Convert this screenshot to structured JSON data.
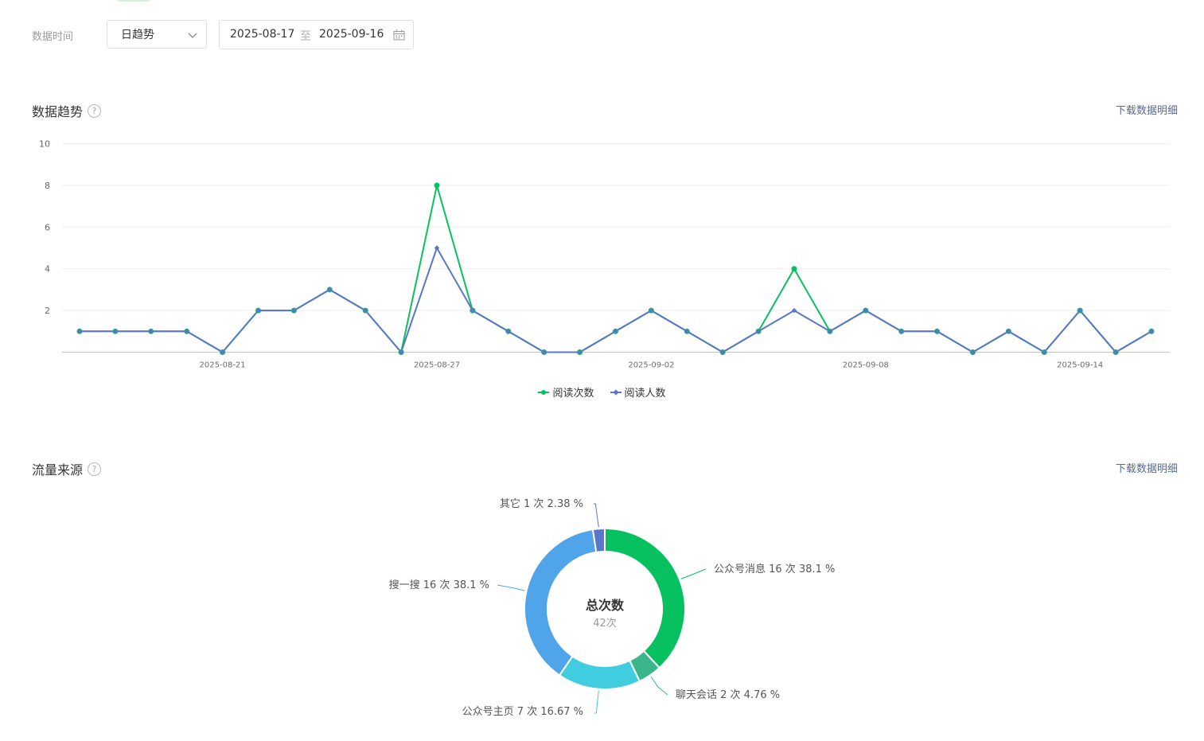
{
  "filters": {
    "label": "数据时间",
    "period_select": "日趋势",
    "date_start": "2025-08-17",
    "date_separator": "至",
    "date_end": "2025-09-16"
  },
  "trend_section": {
    "title": "数据趋势",
    "download_label": "下载数据明细"
  },
  "source_section": {
    "title": "流量来源",
    "download_label": "下载数据明细"
  },
  "colors": {
    "green": "#07c160",
    "blue": "#5b76c9",
    "link": "#576b95"
  },
  "chart_data": [
    {
      "type": "line",
      "x": [
        "2025-08-17",
        "2025-08-18",
        "2025-08-19",
        "2025-08-20",
        "2025-08-21",
        "2025-08-22",
        "2025-08-23",
        "2025-08-24",
        "2025-08-25",
        "2025-08-26",
        "2025-08-27",
        "2025-08-28",
        "2025-08-29",
        "2025-08-30",
        "2025-08-31",
        "2025-09-01",
        "2025-09-02",
        "2025-09-03",
        "2025-09-04",
        "2025-09-05",
        "2025-09-06",
        "2025-09-07",
        "2025-09-08",
        "2025-09-09",
        "2025-09-10",
        "2025-09-11",
        "2025-09-12",
        "2025-09-13",
        "2025-09-14",
        "2025-09-15",
        "2025-09-16"
      ],
      "x_tick_labels": [
        "2025-08-21",
        "2025-08-27",
        "2025-09-02",
        "2025-09-08",
        "2025-09-14"
      ],
      "ylim": [
        0,
        10
      ],
      "y_ticks": [
        2,
        4,
        6,
        8,
        10
      ],
      "grid": true,
      "legend_position": "bottom",
      "series": [
        {
          "name": "阅读次数",
          "color": "#07c160",
          "marker": "circle",
          "values": [
            1,
            1,
            1,
            1,
            0,
            2,
            2,
            3,
            2,
            0,
            8,
            2,
            1,
            0,
            0,
            1,
            2,
            1,
            0,
            1,
            4,
            1,
            2,
            1,
            1,
            0,
            1,
            0,
            2,
            0,
            1
          ]
        },
        {
          "name": "阅读人数",
          "color": "#5b76c9",
          "marker": "diamond",
          "values": [
            1,
            1,
            1,
            1,
            0,
            2,
            2,
            3,
            2,
            0,
            5,
            2,
            1,
            0,
            0,
            1,
            2,
            1,
            0,
            1,
            2,
            1,
            2,
            1,
            1,
            0,
            1,
            0,
            2,
            0,
            1
          ]
        }
      ]
    },
    {
      "type": "pie",
      "center_title": "总次数",
      "center_subtitle": "42次",
      "slices": [
        {
          "name": "公众号消息",
          "count": 16,
          "percent": 38.1,
          "label": "公众号消息 16 次 38.1 %",
          "color": "#07c160"
        },
        {
          "name": "聊天会话",
          "count": 2,
          "percent": 4.76,
          "label": "聊天会话 2 次 4.76 %",
          "color": "#3ab68a"
        },
        {
          "name": "公众号主页",
          "count": 7,
          "percent": 16.67,
          "label": "公众号主页 7 次 16.67 %",
          "color": "#41cde0"
        },
        {
          "name": "搜一搜",
          "count": 16,
          "percent": 38.1,
          "label": "搜一搜 16 次 38.1 %",
          "color": "#4fa4ea"
        },
        {
          "name": "其它",
          "count": 1,
          "percent": 2.38,
          "label": "其它 1 次 2.38 %",
          "color": "#5b76c9"
        }
      ]
    }
  ]
}
